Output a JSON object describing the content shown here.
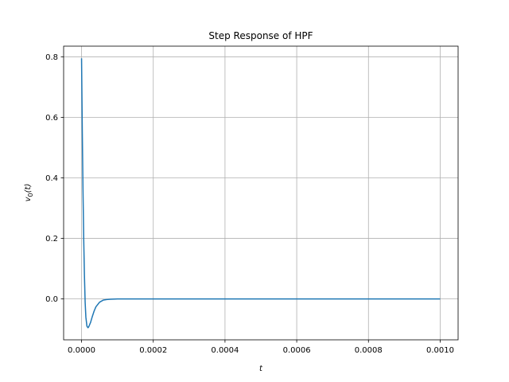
{
  "chart_data": {
    "type": "line",
    "title": "Step Response of HPF",
    "xlabel": "t",
    "ylabel_base": "v",
    "ylabel_sub": "0",
    "ylabel_arg": "(t)",
    "xlim": [
      -5e-05,
      0.00105
    ],
    "ylim": [
      -0.135,
      0.835
    ],
    "grid": true,
    "x_ticks": [
      0.0,
      0.0002,
      0.0004,
      0.0006,
      0.0008,
      0.001
    ],
    "x_tick_labels": [
      "0.0000",
      "0.0002",
      "0.0004",
      "0.0006",
      "0.0008",
      "0.0010"
    ],
    "y_ticks": [
      0.0,
      0.2,
      0.4,
      0.6,
      0.8
    ],
    "y_tick_labels": [
      "0.0",
      "0.2",
      "0.4",
      "0.6",
      "0.8"
    ],
    "series": [
      {
        "color": "#1f77b4",
        "x": [
          0.0,
          2e-06,
          4e-06,
          6e-06,
          8e-06,
          1e-05,
          1.2e-05,
          1.5e-05,
          1.8e-05,
          2e-05,
          2.5e-05,
          3e-05,
          3.5e-05,
          4e-05,
          5e-05,
          6e-05,
          7e-05,
          8e-05,
          0.0001,
          0.00012,
          0.00015,
          0.0002,
          0.0003,
          0.0004,
          0.0005,
          0.0006,
          0.0007,
          0.0008,
          0.0009,
          0.001
        ],
        "y": [
          0.795,
          0.56,
          0.36,
          0.2,
          0.08,
          -0.01,
          -0.06,
          -0.09,
          -0.095,
          -0.092,
          -0.078,
          -0.058,
          -0.04,
          -0.026,
          -0.011,
          -0.004,
          -0.002,
          -0.001,
          0.0,
          0.0,
          0.0,
          0.0,
          0.0,
          0.0,
          0.0,
          0.0,
          0.0,
          0.0,
          0.0,
          0.0
        ]
      }
    ]
  }
}
